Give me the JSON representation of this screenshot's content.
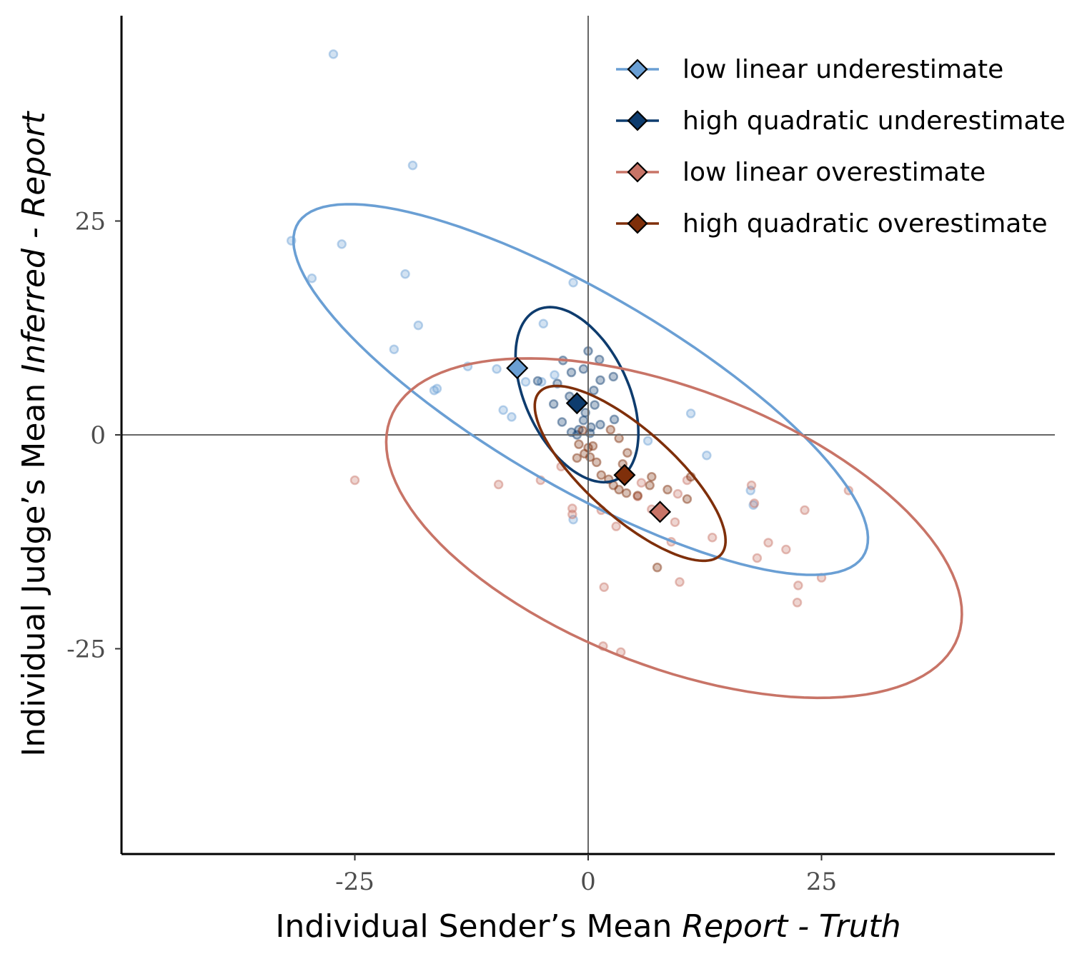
{
  "chart_data": {
    "type": "scatter",
    "xlabel": {
      "prefix": "Individual Sender’s Mean ",
      "italic": "Report - Truth"
    },
    "ylabel": {
      "prefix": "Individual Judge’s Mean ",
      "italic": "Inferred - Report"
    },
    "xlim": [
      -50,
      50
    ],
    "ylim": [
      -49,
      49
    ],
    "xticks": [
      -25,
      0,
      25
    ],
    "yticks": [
      -25,
      0,
      25
    ],
    "xtick_labels": [
      "-25",
      "0",
      "25"
    ],
    "ytick_labels": [
      "-25",
      "0",
      "25"
    ],
    "grid": false,
    "reference_lines": {
      "x": 0,
      "y": 0
    },
    "legend_position": "top-right",
    "series": [
      {
        "name": "low linear underestimate",
        "color": "#6a9fd4",
        "mean": [
          -7.6,
          7.8
        ],
        "ellipse": {
          "cx": -0.8,
          "cy": 5.3,
          "a": 36,
          "b": 11,
          "angle_deg": -33
        },
        "points": [
          [
            -27.3,
            44.5
          ],
          [
            -18.8,
            31.5
          ],
          [
            -31.8,
            22.7
          ],
          [
            -26.4,
            22.3
          ],
          [
            -29.6,
            18.3
          ],
          [
            -19.6,
            18.8
          ],
          [
            -18.2,
            12.8
          ],
          [
            -4.8,
            13.0
          ],
          [
            -20.8,
            10.0
          ],
          [
            -12.9,
            8.0
          ],
          [
            -9.8,
            7.7
          ],
          [
            -16.5,
            5.2
          ],
          [
            -16.2,
            5.4
          ],
          [
            -6.7,
            6.2
          ],
          [
            -9.1,
            2.9
          ],
          [
            -8.2,
            2.1
          ],
          [
            -3.6,
            7.0
          ],
          [
            -5.0,
            6.2
          ],
          [
            -1.6,
            17.8
          ],
          [
            -1.6,
            -9.9
          ],
          [
            11.0,
            2.5
          ],
          [
            12.7,
            -2.4
          ],
          [
            17.7,
            -8.2
          ],
          [
            17.4,
            -6.5
          ],
          [
            6.4,
            -0.7
          ]
        ]
      },
      {
        "name": "high quadratic underestimate",
        "color": "#0e3c6e",
        "mean": [
          -1.2,
          3.7
        ],
        "ellipse": {
          "cx": -1.2,
          "cy": 4.7,
          "a": 10.8,
          "b": 5.6,
          "angle_deg": -68
        },
        "points": [
          [
            0.0,
            9.8
          ],
          [
            1.2,
            8.8
          ],
          [
            -2.7,
            8.7
          ],
          [
            -0.5,
            7.7
          ],
          [
            -1.8,
            7.3
          ],
          [
            2.7,
            6.8
          ],
          [
            1.3,
            6.4
          ],
          [
            -5.4,
            6.3
          ],
          [
            -3.3,
            6.0
          ],
          [
            0.6,
            5.2
          ],
          [
            -2.0,
            4.5
          ],
          [
            -1.2,
            3.9
          ],
          [
            -3.7,
            3.6
          ],
          [
            0.7,
            3.5
          ],
          [
            -0.3,
            2.6
          ],
          [
            -2.8,
            1.5
          ],
          [
            -1.0,
            0.6
          ],
          [
            -1.8,
            0.3
          ],
          [
            -1.2,
            0.0
          ],
          [
            0.2,
            0.2
          ],
          [
            1.3,
            1.2
          ],
          [
            2.8,
            1.8
          ],
          [
            -0.5,
            1.7
          ],
          [
            0.3,
            0.9
          ]
        ]
      },
      {
        "name": "low linear overestimate",
        "color": "#c87467",
        "mean": [
          7.7,
          -9.0
        ],
        "ellipse": {
          "cx": 9.2,
          "cy": -10.9,
          "a": 33,
          "b": 16,
          "angle_deg": -24
        },
        "points": [
          [
            -25.0,
            -5.3
          ],
          [
            -9.6,
            -5.8
          ],
          [
            -5.1,
            -5.3
          ],
          [
            -2.9,
            -3.7
          ],
          [
            -1.7,
            -8.6
          ],
          [
            -1.7,
            -9.3
          ],
          [
            3.0,
            -10.7
          ],
          [
            5.3,
            -7.2
          ],
          [
            1.4,
            -8.8
          ],
          [
            6.8,
            -8.7
          ],
          [
            8.9,
            -12.5
          ],
          [
            9.3,
            -10.2
          ],
          [
            9.6,
            -6.9
          ],
          [
            10.6,
            -5.3
          ],
          [
            13.3,
            -12.0
          ],
          [
            17.5,
            -5.9
          ],
          [
            17.8,
            -8.0
          ],
          [
            18.1,
            -14.4
          ],
          [
            19.3,
            -12.6
          ],
          [
            21.2,
            -13.4
          ],
          [
            22.5,
            -17.6
          ],
          [
            22.4,
            -19.6
          ],
          [
            25.0,
            -16.7
          ],
          [
            23.2,
            -8.8
          ],
          [
            27.9,
            -6.5
          ],
          [
            1.6,
            -24.7
          ],
          [
            3.5,
            -25.4
          ],
          [
            1.7,
            -17.8
          ],
          [
            9.8,
            -17.2
          ],
          [
            5.7,
            -5.6
          ]
        ]
      },
      {
        "name": "high quadratic overestimate",
        "color": "#7f2f0a",
        "mean": [
          3.9,
          -4.7
        ],
        "ellipse": {
          "cx": 4.5,
          "cy": -4.5,
          "a": 13.6,
          "b": 4.9,
          "angle_deg": -45
        },
        "points": [
          [
            0.0,
            -1.5
          ],
          [
            0.5,
            -1.3
          ],
          [
            -0.4,
            -2.2
          ],
          [
            0.2,
            -2.6
          ],
          [
            -1.2,
            -2.7
          ],
          [
            -1.0,
            -1.1
          ],
          [
            2.4,
            0.6
          ],
          [
            3.3,
            -0.4
          ],
          [
            4.2,
            -2.1
          ],
          [
            3.7,
            -3.4
          ],
          [
            1.4,
            -4.7
          ],
          [
            2.2,
            -5.2
          ],
          [
            2.7,
            -5.9
          ],
          [
            3.3,
            -6.4
          ],
          [
            4.1,
            -6.8
          ],
          [
            5.3,
            -7.1
          ],
          [
            6.6,
            -5.9
          ],
          [
            6.8,
            -4.9
          ],
          [
            8.5,
            -6.4
          ],
          [
            10.6,
            -7.5
          ],
          [
            11.0,
            -4.9
          ],
          [
            7.4,
            -15.5
          ],
          [
            0.9,
            -3.2
          ],
          [
            -0.6,
            0.5
          ]
        ]
      }
    ]
  }
}
